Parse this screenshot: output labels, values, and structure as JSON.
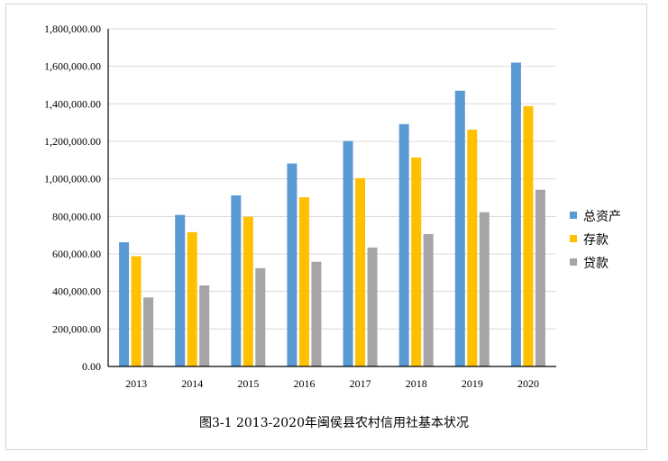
{
  "caption": "图3-1   2013-2020年闽侯县农村信用社基本状况",
  "chart_data": {
    "type": "bar",
    "categories": [
      "2013",
      "2014",
      "2015",
      "2016",
      "2017",
      "2018",
      "2019",
      "2020"
    ],
    "series": [
      {
        "name": "总资产",
        "color": "#5b9bd5",
        "values": [
          662000,
          808000,
          912000,
          1082000,
          1202000,
          1292000,
          1470000,
          1620000
        ]
      },
      {
        "name": "存款",
        "color": "#ffc000",
        "values": [
          588000,
          716000,
          798000,
          902000,
          1004000,
          1114000,
          1262000,
          1388000
        ]
      },
      {
        "name": "贷款",
        "color": "#a5a5a5",
        "values": [
          368000,
          432000,
          524000,
          558000,
          634000,
          706000,
          822000,
          942000
        ]
      }
    ],
    "yticks": [
      "0.00",
      "200,000.00",
      "400,000.00",
      "600,000.00",
      "800,000.00",
      "1,000,000.00",
      "1,200,000.00",
      "1,400,000.00",
      "1,600,000.00",
      "1,800,000.00"
    ],
    "ylim": [
      0,
      1800000
    ],
    "grid": true,
    "legend": "right",
    "title": "",
    "xlabel": "",
    "ylabel": ""
  }
}
